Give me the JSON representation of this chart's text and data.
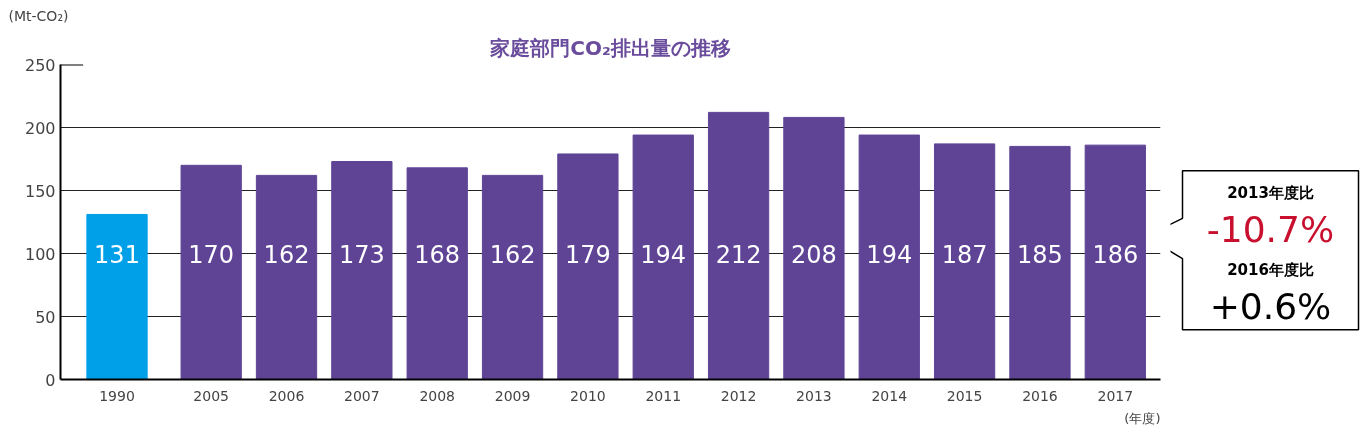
{
  "chart_data": {
    "type": "bar",
    "title": "家庭部門CO₂排出量の推移",
    "ylabel": "(Mt-CO₂)",
    "xlabel": "(年度)",
    "categories": [
      "1990",
      "2005",
      "2006",
      "2007",
      "2008",
      "2009",
      "2010",
      "2011",
      "2012",
      "2013",
      "2014",
      "2015",
      "2016",
      "2017"
    ],
    "values": [
      131,
      170,
      162,
      173,
      168,
      162,
      179,
      194,
      212,
      208,
      194,
      187,
      185,
      186
    ],
    "colors": [
      "#00a0e9",
      "#5f4496",
      "#5f4496",
      "#5f4496",
      "#5f4496",
      "#5f4496",
      "#5f4496",
      "#5f4496",
      "#5f4496",
      "#5f4496",
      "#5f4496",
      "#5f4496",
      "#5f4496",
      "#5f4496"
    ],
    "ylim": [
      0,
      250
    ],
    "yticks": [
      0,
      50,
      100,
      150,
      200,
      250
    ],
    "grid": "y",
    "data_labels": true,
    "annotations": [
      "2013年度比",
      "-10.7%",
      "2016年度比",
      "+0.6%"
    ]
  }
}
